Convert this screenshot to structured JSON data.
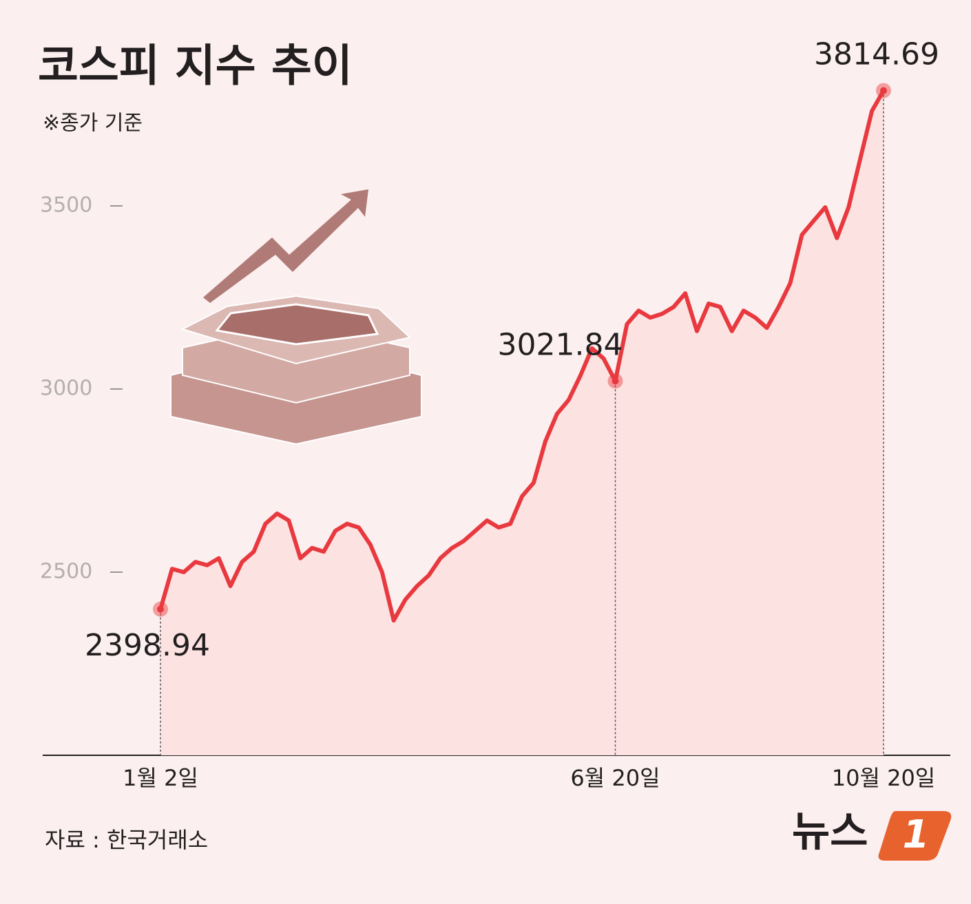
{
  "chart_data": {
    "type": "line",
    "title": "코스피 지수 추이",
    "subtitle": "※종가 기준",
    "source": "자료 : 한국거래소",
    "brand": {
      "name": "뉴스",
      "mark": "1"
    },
    "categories": [
      "1월 2일",
      null,
      null,
      null,
      null,
      null,
      null,
      null,
      null,
      null,
      null,
      null,
      null,
      null,
      null,
      null,
      null,
      null,
      null,
      null,
      null,
      null,
      null,
      null,
      null,
      null,
      null,
      null,
      null,
      null,
      null,
      null,
      null,
      null,
      null,
      null,
      null,
      null,
      null,
      "6월 20일",
      null,
      null,
      null,
      null,
      null,
      null,
      null,
      null,
      null,
      null,
      null,
      null,
      null,
      null,
      null,
      null,
      null,
      null,
      null,
      null,
      null,
      null,
      "10월 20일"
    ],
    "values": [
      2398.94,
      2509,
      2500,
      2528,
      2519,
      2538,
      2462,
      2528,
      2556,
      2632,
      2660,
      2641,
      2538,
      2566,
      2556,
      2613,
      2632,
      2622,
      2575,
      2500,
      2368,
      2425,
      2462,
      2491,
      2538,
      2566,
      2585,
      2613,
      2641,
      2622,
      2632,
      2707,
      2744,
      2857,
      2932,
      2970,
      3036,
      3111,
      3083,
      3021.84,
      3177,
      3214,
      3195,
      3205,
      3224,
      3261,
      3158,
      3233,
      3224,
      3158,
      3214,
      3195,
      3167,
      3224,
      3289,
      3421,
      3459,
      3496,
      3412,
      3496,
      3628,
      3759,
      3814.69
    ],
    "color": "#e8393f",
    "ylim": [
      2000,
      4000
    ],
    "yticks": [
      2500,
      3000,
      3500
    ]
  }
}
